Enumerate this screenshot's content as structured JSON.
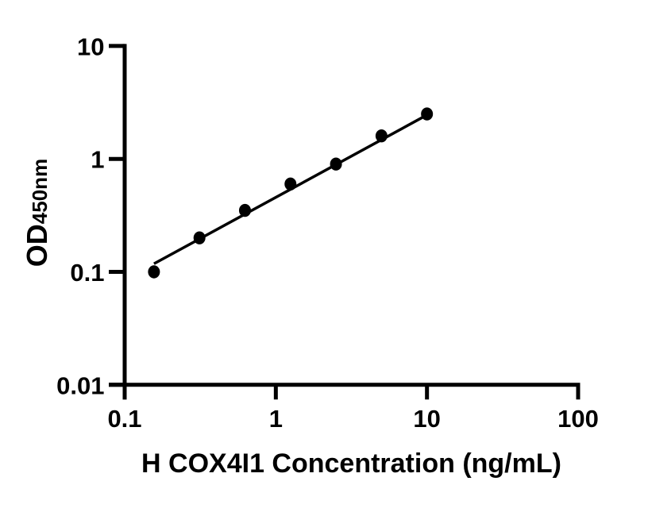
{
  "page": {
    "background": "#ffffff",
    "foreground": "#000000"
  },
  "chart_data": {
    "type": "scatter",
    "title": "",
    "xlabel": "H COX4I1 Concentration (ng/mL)",
    "ylabel": "OD450nm",
    "ylabel_main": "OD",
    "ylabel_sub": "450nm",
    "x_scale": "log10",
    "y_scale": "log10",
    "xlim": [
      0.1,
      100
    ],
    "ylim": [
      0.01,
      10
    ],
    "x_tick_values": [
      0.1,
      1,
      10,
      100
    ],
    "x_tick_labels": [
      "0.1",
      "1",
      "10",
      "100"
    ],
    "y_tick_values": [
      10,
      1,
      0.1,
      0.01
    ],
    "y_tick_labels": [
      "10",
      "1",
      "0.1",
      "0.01"
    ],
    "grid": false,
    "legend": false,
    "marker": "filled-circle",
    "marker_color": "#000000",
    "line_color": "#000000",
    "axis_color": "#000000",
    "points": {
      "x": [
        0.15625,
        0.3125,
        0.625,
        1.25,
        2.5,
        5,
        10
      ],
      "y": [
        0.1,
        0.2,
        0.35,
        0.6,
        0.9,
        1.6,
        2.5
      ]
    },
    "trend_line": {
      "x": [
        0.15625,
        10
      ],
      "y": [
        0.118,
        2.45
      ]
    }
  }
}
